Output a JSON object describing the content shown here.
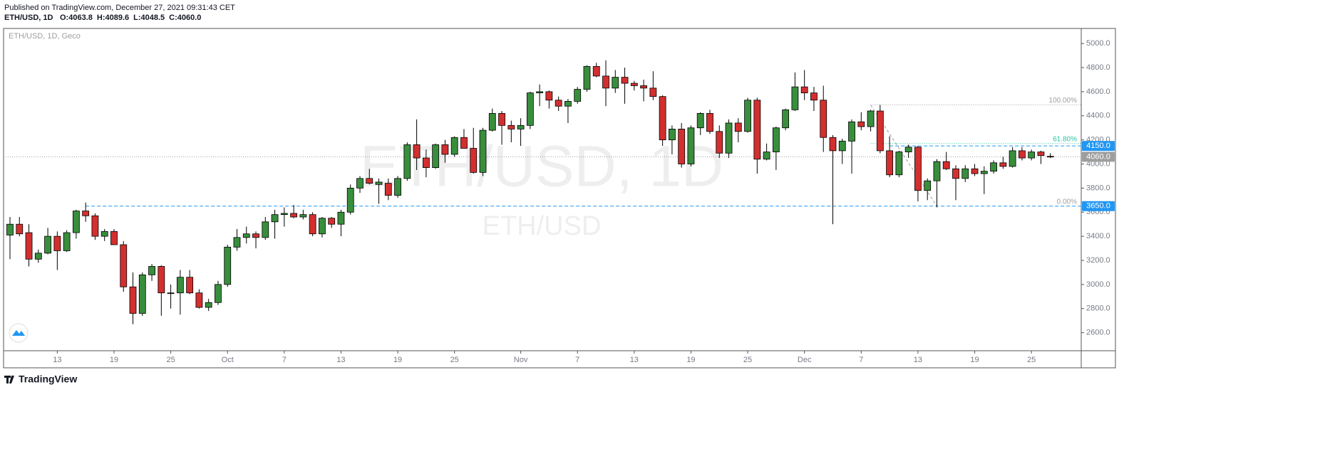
{
  "header": {
    "published": "Published on TradingView.com, December 27, 2021 09:31:43 CET",
    "symbol": "ETH/USD, 1D",
    "ohlc": [
      "O:4063.8",
      "H:4089.6",
      "L:4048.5",
      "C:4060.0"
    ]
  },
  "footer": {
    "brand": "TradingView"
  },
  "chart_data": {
    "type": "candlestick",
    "pane_label": "ETH/USD, 1D, Geco",
    "watermark": "ETH/USD, 1D",
    "watermark_sub": "ETH/USD",
    "up_color": "#388e3c",
    "down_color": "#d32f2f",
    "x": [
      "2021-09-08",
      "2021-09-09",
      "2021-09-10",
      "2021-09-11",
      "2021-09-12",
      "2021-09-13",
      "2021-09-14",
      "2021-09-15",
      "2021-09-16",
      "2021-09-17",
      "2021-09-18",
      "2021-09-19",
      "2021-09-20",
      "2021-09-21",
      "2021-09-22",
      "2021-09-23",
      "2021-09-24",
      "2021-09-25",
      "2021-09-26",
      "2021-09-27",
      "2021-09-28",
      "2021-09-29",
      "2021-09-30",
      "2021-10-01",
      "2021-10-02",
      "2021-10-03",
      "2021-10-04",
      "2021-10-05",
      "2021-10-06",
      "2021-10-07",
      "2021-10-08",
      "2021-10-09",
      "2021-10-10",
      "2021-10-11",
      "2021-10-12",
      "2021-10-13",
      "2021-10-14",
      "2021-10-15",
      "2021-10-16",
      "2021-10-17",
      "2021-10-18",
      "2021-10-19",
      "2021-10-20",
      "2021-10-21",
      "2021-10-22",
      "2021-10-23",
      "2021-10-24",
      "2021-10-25",
      "2021-10-26",
      "2021-10-27",
      "2021-10-28",
      "2021-10-29",
      "2021-10-30",
      "2021-10-31",
      "2021-11-01",
      "2021-11-02",
      "2021-11-03",
      "2021-11-04",
      "2021-11-05",
      "2021-11-06",
      "2021-11-07",
      "2021-11-08",
      "2021-11-09",
      "2021-11-10",
      "2021-11-11",
      "2021-11-12",
      "2021-11-13",
      "2021-11-14",
      "2021-11-15",
      "2021-11-16",
      "2021-11-17",
      "2021-11-18",
      "2021-11-19",
      "2021-11-20",
      "2021-11-21",
      "2021-11-22",
      "2021-11-23",
      "2021-11-24",
      "2021-11-25",
      "2021-11-26",
      "2021-11-27",
      "2021-11-28",
      "2021-11-29",
      "2021-11-30",
      "2021-12-01",
      "2021-12-02",
      "2021-12-03",
      "2021-12-04",
      "2021-12-05",
      "2021-12-06",
      "2021-12-07",
      "2021-12-08",
      "2021-12-09",
      "2021-12-10",
      "2021-12-11",
      "2021-12-12",
      "2021-12-13",
      "2021-12-14",
      "2021-12-15",
      "2021-12-16",
      "2021-12-17",
      "2021-12-18",
      "2021-12-19",
      "2021-12-20",
      "2021-12-21",
      "2021-12-22",
      "2021-12-23",
      "2021-12-24",
      "2021-12-25",
      "2021-12-26",
      "2021-12-27"
    ],
    "open": [
      3410,
      3500,
      3430,
      3210,
      3260,
      3400,
      3280,
      3430,
      3610,
      3570,
      3400,
      3440,
      3330,
      2980,
      2760,
      3080,
      3150,
      2930,
      2930,
      3060,
      2930,
      2810,
      2850,
      3000,
      3310,
      3390,
      3420,
      3390,
      3520,
      3580,
      3590,
      3560,
      3580,
      3420,
      3550,
      3500,
      3600,
      3800,
      3880,
      3830,
      3840,
      3740,
      3880,
      4160,
      4050,
      3970,
      4160,
      4080,
      4220,
      4130,
      3930,
      4280,
      4420,
      4320,
      4290,
      4320,
      4590,
      4600,
      4530,
      4480,
      4520,
      4620,
      4810,
      4730,
      4630,
      4720,
      4670,
      4650,
      4630,
      4560,
      4200,
      4290,
      4000,
      4300,
      4420,
      4270,
      4090,
      4340,
      4270,
      4530,
      4040,
      4100,
      4300,
      4450,
      4640,
      4590,
      4530,
      4220,
      4110,
      4190,
      4350,
      4310,
      4440,
      4110,
      3910,
      4100,
      4140,
      3780,
      3860,
      4020,
      3960,
      3880,
      3960,
      3920,
      3940,
      4010,
      3980,
      4110,
      4050,
      4100,
      4063.8
    ],
    "high": [
      3560,
      3560,
      3500,
      3290,
      3470,
      3440,
      3450,
      3620,
      3680,
      3590,
      3460,
      3460,
      3360,
      3100,
      3100,
      3170,
      3160,
      3000,
      3120,
      3120,
      2960,
      2880,
      3030,
      3330,
      3460,
      3480,
      3440,
      3560,
      3620,
      3640,
      3660,
      3620,
      3600,
      3560,
      3560,
      3620,
      3830,
      3900,
      3960,
      3880,
      3880,
      3900,
      4180,
      4370,
      4120,
      4170,
      4200,
      4230,
      4290,
      4300,
      4300,
      4460,
      4440,
      4360,
      4380,
      4600,
      4660,
      4610,
      4560,
      4540,
      4640,
      4820,
      4840,
      4860,
      4780,
      4800,
      4690,
      4700,
      4770,
      4570,
      4320,
      4340,
      4320,
      4430,
      4450,
      4320,
      4370,
      4380,
      4550,
      4550,
      4170,
      4310,
      4460,
      4760,
      4780,
      4640,
      4650,
      4240,
      4210,
      4370,
      4430,
      4450,
      4490,
      4230,
      4110,
      4160,
      4150,
      3880,
      4040,
      4100,
      3990,
      3990,
      4000,
      3980,
      4030,
      4060,
      4140,
      4140,
      4120,
      4110,
      4089.6
    ],
    "low": [
      3210,
      3400,
      3150,
      3180,
      3250,
      3120,
      3270,
      3380,
      3520,
      3370,
      3360,
      3330,
      2940,
      2670,
      2740,
      3030,
      2740,
      2800,
      2750,
      2920,
      2800,
      2780,
      2830,
      2980,
      3280,
      3340,
      3300,
      3370,
      3380,
      3480,
      3550,
      3540,
      3400,
      3390,
      3470,
      3400,
      3580,
      3760,
      3830,
      3670,
      3700,
      3720,
      3860,
      3950,
      3890,
      3960,
      4010,
      4060,
      4130,
      3920,
      3900,
      4270,
      4160,
      4180,
      4150,
      4290,
      4480,
      4460,
      4440,
      4340,
      4500,
      4600,
      4720,
      4480,
      4590,
      4500,
      4610,
      4520,
      4530,
      4150,
      4080,
      3970,
      3980,
      4240,
      4250,
      4050,
      4050,
      4180,
      4260,
      3920,
      4030,
      3950,
      4280,
      4440,
      4530,
      4440,
      4100,
      3500,
      4000,
      3920,
      4280,
      4270,
      4090,
      3890,
      3890,
      4050,
      3690,
      3700,
      3640,
      3950,
      3700,
      3850,
      3900,
      3750,
      3920,
      3960,
      3970,
      4030,
      4030,
      4000,
      4048.5
    ],
    "close": [
      3500,
      3420,
      3210,
      3260,
      3400,
      3280,
      3430,
      3610,
      3570,
      3400,
      3440,
      3330,
      2980,
      2760,
      3080,
      3150,
      2930,
      2925,
      3060,
      2930,
      2810,
      2850,
      3000,
      3310,
      3390,
      3420,
      3390,
      3520,
      3580,
      3590,
      3560,
      3580,
      3420,
      3550,
      3500,
      3600,
      3800,
      3880,
      3840,
      3850,
      3740,
      3880,
      4160,
      4050,
      3970,
      4160,
      4080,
      4220,
      4130,
      3930,
      4280,
      4420,
      4320,
      4290,
      4320,
      4590,
      4600,
      4530,
      4480,
      4520,
      4620,
      4810,
      4730,
      4630,
      4720,
      4670,
      4650,
      4630,
      4560,
      4200,
      4290,
      4000,
      4300,
      4420,
      4270,
      4090,
      4340,
      4270,
      4530,
      4040,
      4100,
      4300,
      4450,
      4640,
      4590,
      4530,
      4220,
      4110,
      4190,
      4350,
      4310,
      4440,
      4110,
      3910,
      4100,
      4140,
      3780,
      3860,
      4020,
      3960,
      3880,
      3960,
      3920,
      3940,
      4010,
      3980,
      4110,
      4050,
      4100,
      4070,
      4060
    ],
    "ylim": [
      2450,
      5125
    ],
    "yticks": [
      {
        "value": 2600,
        "label": "2600.0"
      },
      {
        "value": 2800,
        "label": "2800.0"
      },
      {
        "value": 3000,
        "label": "3000.0"
      },
      {
        "value": 3200,
        "label": "3200.0"
      },
      {
        "value": 3400,
        "label": "3400.0"
      },
      {
        "value": 3600,
        "label": "3600.0"
      },
      {
        "value": 3800,
        "label": "3800.0"
      },
      {
        "value": 4000,
        "label": "4000.0"
      },
      {
        "value": 4200,
        "label": "4200.0"
      },
      {
        "value": 4400,
        "label": "4400.0"
      },
      {
        "value": 4600,
        "label": "4600.0"
      },
      {
        "value": 4800,
        "label": "4800.0"
      },
      {
        "value": 5000,
        "label": "5000.0"
      }
    ],
    "xticks": [
      {
        "value": "2021-09-13",
        "label": "13"
      },
      {
        "value": "2021-09-19",
        "label": "19"
      },
      {
        "value": "2021-09-25",
        "label": "25"
      },
      {
        "value": "2021-10-01",
        "label": "Oct"
      },
      {
        "value": "2021-10-07",
        "label": "7"
      },
      {
        "value": "2021-10-13",
        "label": "13"
      },
      {
        "value": "2021-10-19",
        "label": "19"
      },
      {
        "value": "2021-10-25",
        "label": "25"
      },
      {
        "value": "2021-11-01",
        "label": "Nov"
      },
      {
        "value": "2021-11-07",
        "label": "7"
      },
      {
        "value": "2021-11-13",
        "label": "13"
      },
      {
        "value": "2021-11-19",
        "label": "19"
      },
      {
        "value": "2021-11-25",
        "label": "25"
      },
      {
        "value": "2021-12-01",
        "label": "Dec"
      },
      {
        "value": "2021-12-07",
        "label": "7"
      },
      {
        "value": "2021-12-13",
        "label": "13"
      },
      {
        "value": "2021-12-19",
        "label": "19"
      },
      {
        "value": "2021-12-25",
        "label": "25"
      }
    ],
    "hlines": [
      {
        "value": 3650,
        "label": "3650.0",
        "color": "#2196f3",
        "from": "2021-09-16"
      },
      {
        "value": 4150,
        "label": "4150.0",
        "color": "#2196f3",
        "from": "2021-12-10"
      },
      {
        "value": 4060,
        "label": "4060.0",
        "color": "#9e9e9e"
      }
    ],
    "fib": {
      "from": "2021-12-08",
      "to": "2021-12-15",
      "levels": [
        {
          "label": "100.00%",
          "value": 4490,
          "color": "#9e9e9e"
        },
        {
          "label": "61.80%",
          "value": 4170,
          "color": "#26c6a0"
        },
        {
          "label": "0.00%",
          "value": 3650,
          "color": "#9e9e9e"
        }
      ]
    }
  }
}
